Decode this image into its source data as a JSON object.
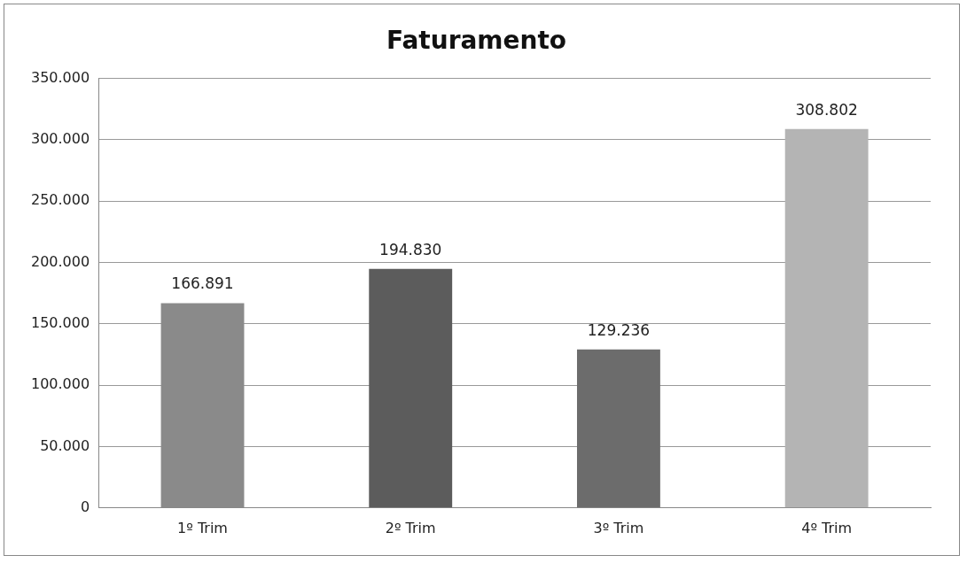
{
  "chart_data": {
    "type": "bar",
    "title": "Faturamento",
    "categories": [
      "1º Trim",
      "2º Trim",
      "3º Trim",
      "4º Trim"
    ],
    "values": [
      166891,
      194830,
      129236,
      308802
    ],
    "colors": [
      "#8a8a8a",
      "#5c5c5c",
      "#6c6c6c",
      "#b4b4b4"
    ],
    "value_labels": [
      "166.891",
      "194.830",
      "129.236",
      "308.802"
    ],
    "ylim": [
      0,
      350000
    ],
    "yticks": [
      {
        "value": 0,
        "label": "0"
      },
      {
        "value": 50000,
        "label": "50.000"
      },
      {
        "value": 100000,
        "label": "100.000"
      },
      {
        "value": 150000,
        "label": "150.000"
      },
      {
        "value": 200000,
        "label": "200.000"
      },
      {
        "value": 250000,
        "label": "250.000"
      },
      {
        "value": 300000,
        "label": "300.000"
      },
      {
        "value": 350000,
        "label": "350.000"
      }
    ],
    "grid": "y"
  }
}
